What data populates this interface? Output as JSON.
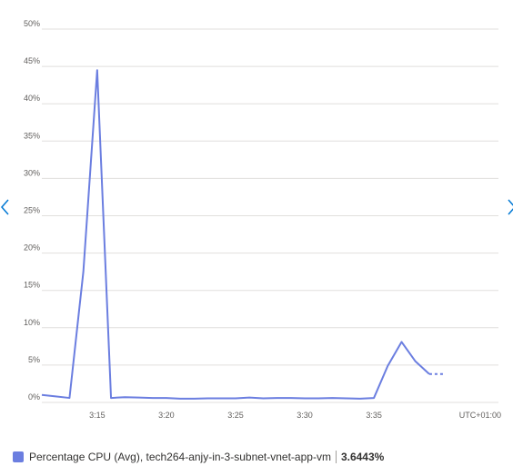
{
  "theme": {
    "line_color": "#6b7ee0",
    "grid_color": "#e1dfdd"
  },
  "nav": {
    "left_icon": "chevron-left-icon",
    "right_icon": "chevron-right-icon"
  },
  "chart_data": {
    "type": "line",
    "y_tick_labels": [
      "0%",
      "5%",
      "10%",
      "15%",
      "20%",
      "25%",
      "30%",
      "35%",
      "40%",
      "45%",
      "50%"
    ],
    "y_ticks": [
      0,
      5,
      10,
      15,
      20,
      25,
      30,
      35,
      40,
      45,
      50
    ],
    "ylim": [
      0,
      50
    ],
    "x_tick_labels": [
      "3:15",
      "3:20",
      "3:25",
      "3:30",
      "3:35"
    ],
    "x_ticks": [
      "3:15",
      "3:20",
      "3:25",
      "3:30",
      "3:35"
    ],
    "xlim": [
      "3:11",
      "3:44"
    ],
    "timezone_label": "UTC+01:00",
    "grid": true,
    "series": [
      {
        "name": "Percentage CPU (Avg), tech264-anjy-in-3-subnet-vnet-app-vm",
        "x": [
          "3:11",
          "3:12",
          "3:13",
          "3:14",
          "3:15",
          "3:16",
          "3:17",
          "3:18",
          "3:19",
          "3:20",
          "3:21",
          "3:22",
          "3:23",
          "3:24",
          "3:25",
          "3:26",
          "3:27",
          "3:28",
          "3:29",
          "3:30",
          "3:31",
          "3:32",
          "3:33",
          "3:34",
          "3:35",
          "3:36",
          "3:37",
          "3:38",
          "3:39",
          "3:40"
        ],
        "values": [
          1.0,
          0.8,
          0.6,
          17.5,
          44.5,
          0.6,
          0.7,
          0.65,
          0.6,
          0.6,
          0.5,
          0.5,
          0.55,
          0.55,
          0.55,
          0.65,
          0.55,
          0.6,
          0.6,
          0.55,
          0.55,
          0.6,
          0.55,
          0.5,
          0.6,
          4.9,
          8.1,
          5.5,
          3.8,
          3.8
        ],
        "dashed_from": "3:39"
      }
    ]
  },
  "legend": {
    "label": "Percentage CPU (Avg), tech264-anjy-in-3-subnet-vnet-app-vm",
    "value": "3.6443%"
  }
}
